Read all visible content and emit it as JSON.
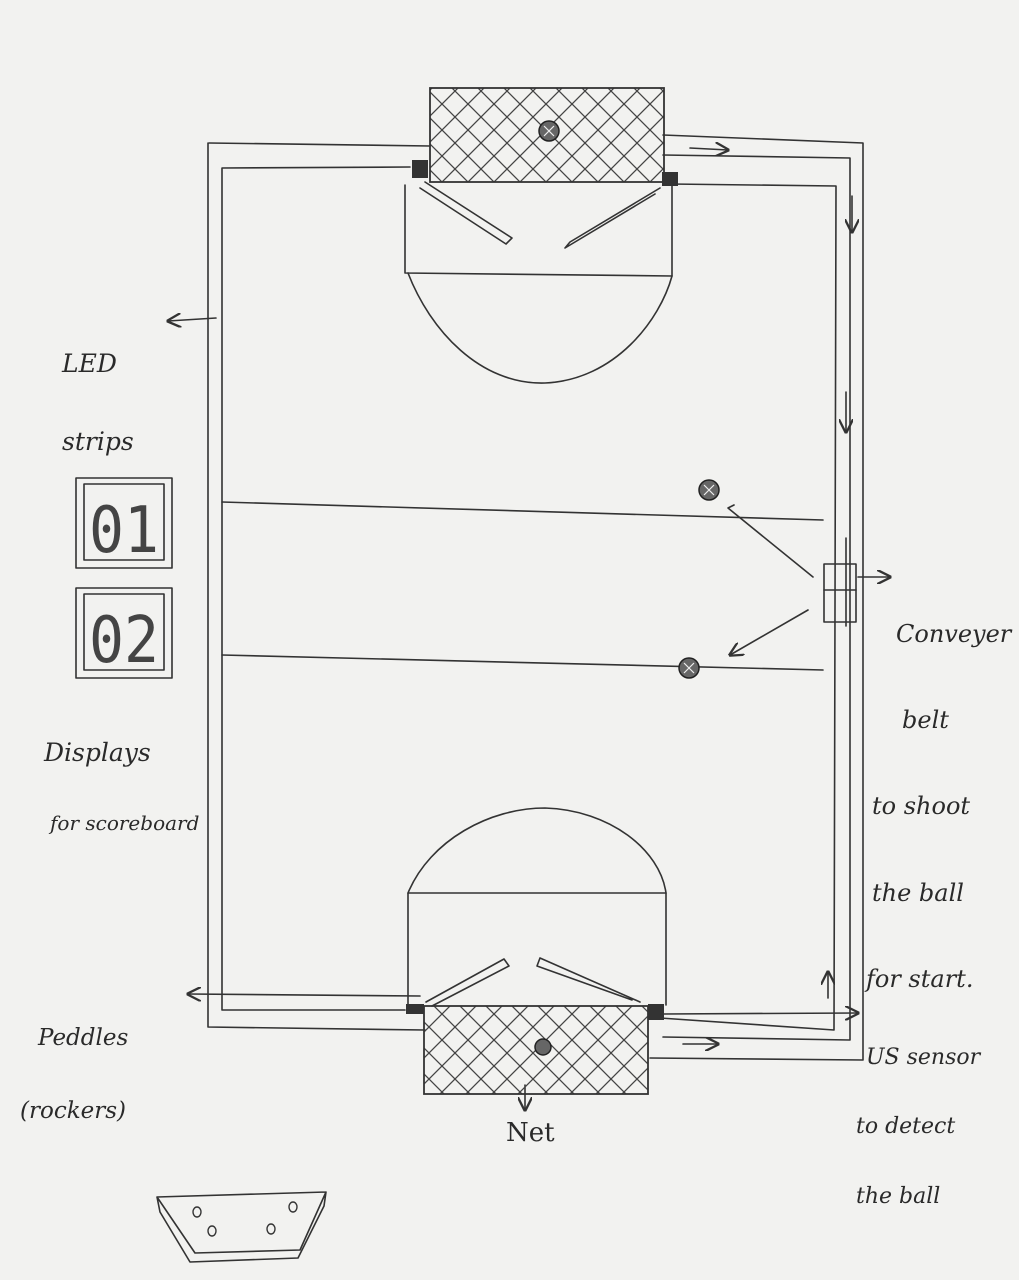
{
  "labels": {
    "led": [
      "LED",
      "strips"
    ],
    "displays": [
      "Displays",
      "for scoreboard"
    ],
    "conveyor": [
      "Conveyer",
      "belt",
      "to shoot",
      "the ball",
      "for start."
    ],
    "paddles": [
      "Peddles",
      "(rockers)"
    ],
    "sensor": [
      "US sensor",
      "to detect",
      "the ball"
    ],
    "net": "Net"
  },
  "scoreboard": {
    "display_1": "01",
    "display_2": "02"
  },
  "colors": {
    "ink": "#2a2a2a",
    "paper": "#f2f2f0",
    "dark_block": "#333333"
  }
}
